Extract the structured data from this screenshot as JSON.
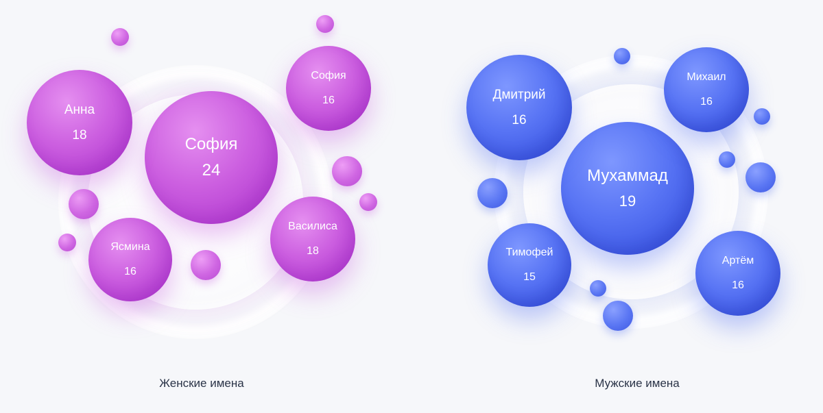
{
  "chart_data": [
    {
      "type": "bubble",
      "caption": "Женские имена",
      "color": "#c455dc",
      "names": [
        {
          "name": "София",
          "value": 24
        },
        {
          "name": "Анна",
          "value": 18
        },
        {
          "name": "Василиса",
          "value": 18
        },
        {
          "name": "София",
          "value": 16
        },
        {
          "name": "Ясмина",
          "value": 16
        }
      ]
    },
    {
      "type": "bubble",
      "caption": "Мужские имена",
      "color": "#4a66ec",
      "names": [
        {
          "name": "Мухаммад",
          "value": 19
        },
        {
          "name": "Дмитрий",
          "value": 16
        },
        {
          "name": "Михаил",
          "value": 16
        },
        {
          "name": "Артём",
          "value": 16
        },
        {
          "name": "Тимофей",
          "value": 15
        }
      ]
    }
  ]
}
